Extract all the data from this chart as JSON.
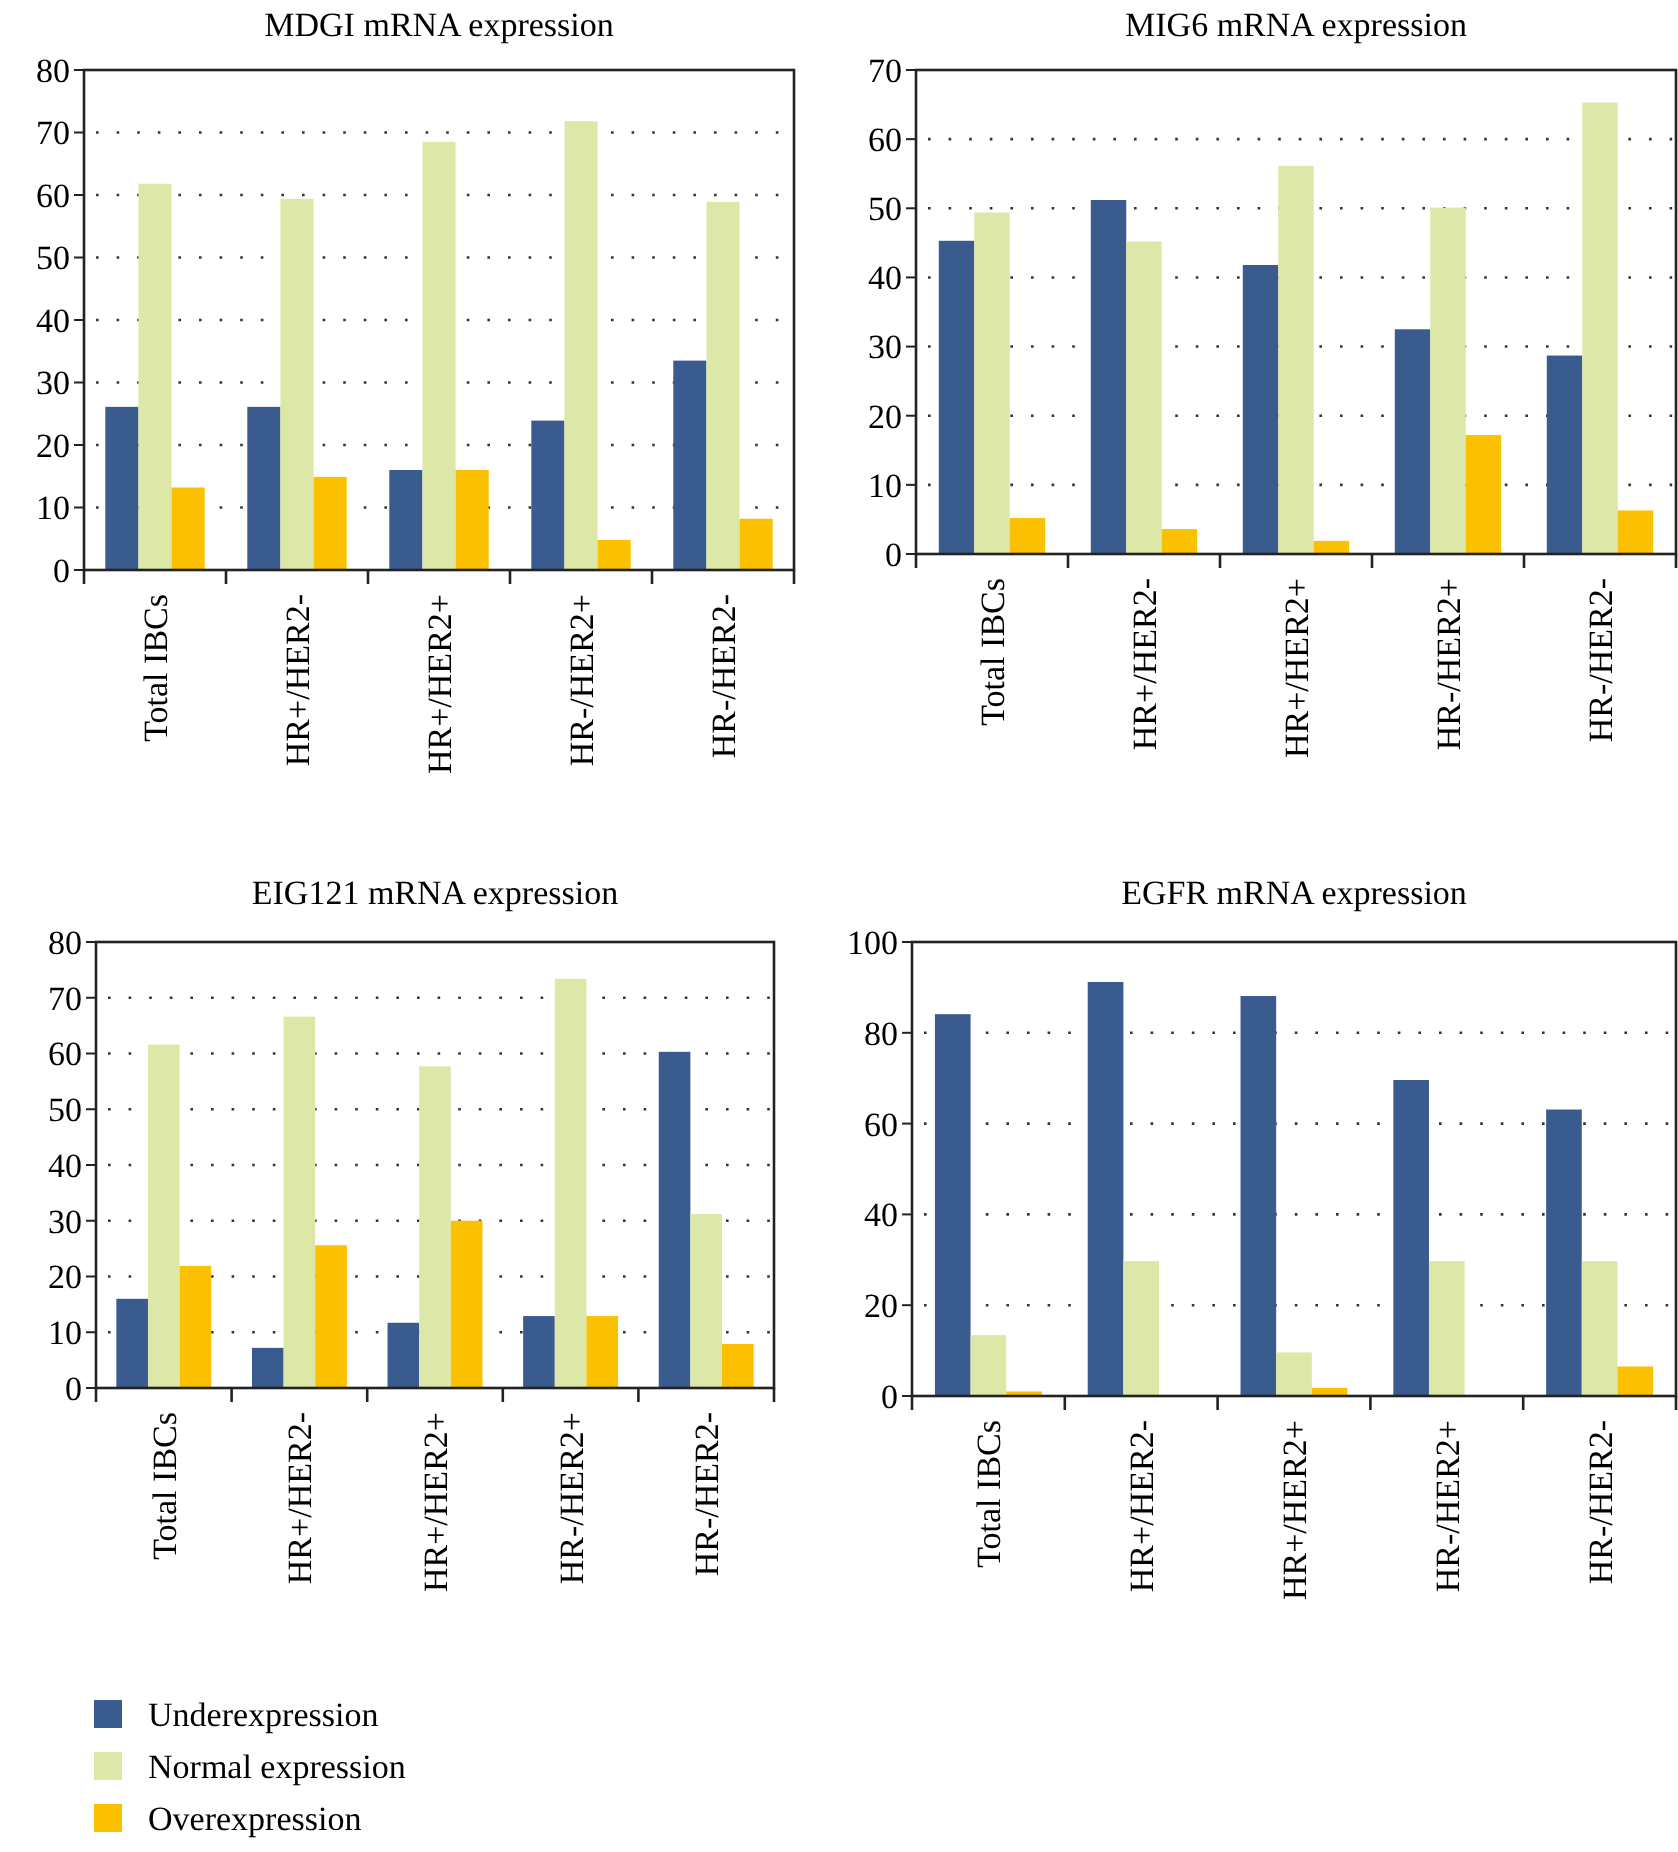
{
  "chart_data": [
    {
      "type": "bar",
      "title": "MDGI mRNA expression",
      "categories": [
        "Total IBCs",
        "HR+/HER2-",
        "HR+/HER2+",
        "HR-/HER2+",
        "HR-/HER2-"
      ],
      "series": [
        {
          "color": "#3a5b8e",
          "values": [
            26.1,
            26.1,
            16,
            23.9,
            33.5
          ]
        },
        {
          "color": "#dde8a8",
          "values": [
            61.8,
            59.4,
            68.5,
            71.8,
            58.9
          ]
        },
        {
          "color": "#fbc000",
          "values": [
            13.2,
            14.9,
            16,
            4.8,
            8.2
          ]
        }
      ],
      "ylim": [
        0,
        80
      ],
      "yticks": [
        0,
        10,
        20,
        30,
        40,
        50,
        60,
        70,
        80
      ],
      "grid": "y"
    },
    {
      "type": "bar",
      "title": "MIG6 mRNA expression",
      "categories": [
        "Total IBCs",
        "HR+/HER2-",
        "HR+/HER2+",
        "HR-/HER2+",
        "HR-/HER2-"
      ],
      "series": [
        {
          "color": "#3a5b8e",
          "values": [
            45.3,
            51.2,
            41.8,
            32.5,
            28.7
          ]
        },
        {
          "color": "#dde8a8",
          "values": [
            49.4,
            45.2,
            56.1,
            50.1,
            65.3
          ]
        },
        {
          "color": "#fbc000",
          "values": [
            5.2,
            3.6,
            1.9,
            17.2,
            6.3
          ]
        }
      ],
      "ylim": [
        0,
        70
      ],
      "yticks": [
        0,
        10,
        20,
        30,
        40,
        50,
        60,
        70
      ],
      "grid": "y"
    },
    {
      "type": "bar",
      "title": "EIG121 mRNA expression",
      "categories": [
        "Total IBCs",
        "HR+/HER2-",
        "HR+/HER2+",
        "HR-/HER2+",
        "HR-/HER2-"
      ],
      "series": [
        {
          "name": "Underexpression",
          "color": "#3a5b8e",
          "values": [
            16,
            7.2,
            11.7,
            12.9,
            60.3
          ]
        },
        {
          "name": "Normal expression",
          "color": "#dde8a8",
          "values": [
            61.6,
            66.6,
            57.7,
            73.4,
            31.2
          ]
        },
        {
          "name": "Overexpression",
          "color": "#fbc000",
          "values": [
            21.9,
            25.6,
            30,
            12.9,
            7.9
          ]
        }
      ],
      "ylim": [
        0,
        80
      ],
      "yticks": [
        0,
        10,
        20,
        30,
        40,
        50,
        60,
        70,
        80
      ],
      "grid": "y",
      "legend": "bottom left"
    },
    {
      "type": "bar",
      "title": "EGFR mRNA expression",
      "categories": [
        "Total IBCs",
        "HR+/HER2-",
        "HR+/HER2+",
        "HR-/HER2+",
        "HR-/HER2-"
      ],
      "series": [
        {
          "color": "#3a5b8e",
          "values": [
            84.1,
            91.2,
            88.1,
            69.6,
            63.1
          ]
        },
        {
          "color": "#dde8a8",
          "values": [
            13.4,
            29.7,
            9.6,
            29.7,
            29.7
          ]
        },
        {
          "color": "#fbc000",
          "values": [
            1,
            0,
            1.8,
            0,
            6.5
          ]
        }
      ],
      "ylim": [
        0,
        100
      ],
      "yticks": [
        0,
        20,
        40,
        60,
        80,
        100
      ],
      "grid": "y"
    }
  ]
}
